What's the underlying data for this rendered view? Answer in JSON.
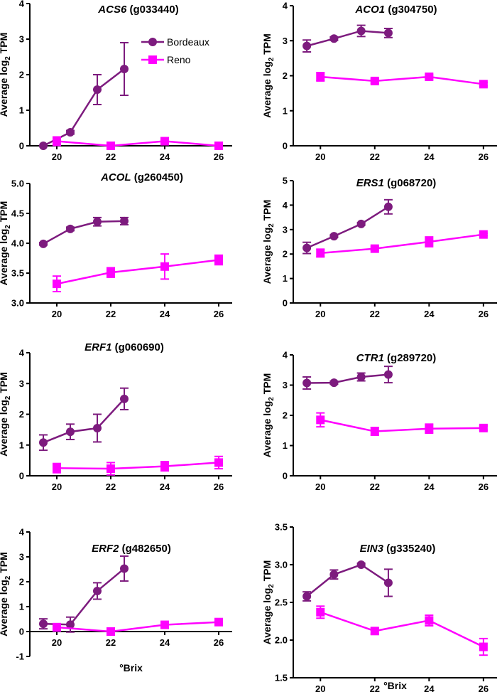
{
  "colors": {
    "bordeaux": "#7d1b7e",
    "reno": "#ff00ff",
    "axis": "#000000"
  },
  "legend": {
    "placement": "top-right of first panel",
    "entries": [
      "Bordeaux",
      "Reno"
    ]
  },
  "chart_data": [
    {
      "type": "line",
      "gene": "ACS6",
      "gene_id": "(g033440)",
      "xlabel": "",
      "ylabel": "Average log2 TPM",
      "xlim": [
        19,
        26.5
      ],
      "ylim": [
        0,
        4
      ],
      "xticks": [
        "20",
        "22",
        "24",
        "26"
      ],
      "yticks": [
        "0",
        "1",
        "2",
        "3",
        "4"
      ],
      "series": [
        {
          "name": "Bordeaux",
          "marker": "circle",
          "x": [
            19.5,
            20.5,
            21.5,
            22.5
          ],
          "y": [
            0.0,
            0.38,
            1.58,
            2.16
          ],
          "err": [
            0.0,
            0.05,
            0.42,
            0.74
          ]
        },
        {
          "name": "Reno",
          "marker": "square",
          "x": [
            20,
            22,
            24,
            26
          ],
          "y": [
            0.13,
            0.0,
            0.13,
            0.0
          ],
          "err": [
            0.12,
            0.05,
            0.1,
            0.05
          ]
        }
      ]
    },
    {
      "type": "line",
      "gene": "ACO1",
      "gene_id": "(g304750)",
      "xlabel": "",
      "ylabel": "Average log2 TPM",
      "xlim": [
        19,
        26.5
      ],
      "ylim": [
        0,
        4
      ],
      "xticks": [
        "20",
        "22",
        "24",
        "26"
      ],
      "yticks": [
        "0",
        "1",
        "2",
        "3",
        "4"
      ],
      "series": [
        {
          "name": "Bordeaux",
          "marker": "circle",
          "x": [
            19.5,
            20.5,
            21.5,
            22.5
          ],
          "y": [
            2.85,
            3.06,
            3.28,
            3.22
          ],
          "err": [
            0.17,
            0.05,
            0.16,
            0.13
          ]
        },
        {
          "name": "Reno",
          "marker": "square",
          "x": [
            20,
            22,
            24,
            26
          ],
          "y": [
            1.97,
            1.85,
            1.97,
            1.76
          ],
          "err": [
            0.12,
            0.06,
            0.05,
            0.05
          ]
        }
      ]
    },
    {
      "type": "line",
      "gene": "ACOL",
      "gene_id": "(g260450)",
      "xlabel": "",
      "ylabel": "Average log2 TPM",
      "xlim": [
        19,
        26.5
      ],
      "ylim": [
        3.0,
        5.0
      ],
      "xticks": [
        "20",
        "22",
        "24",
        "26"
      ],
      "yticks": [
        "3.0",
        "3.5",
        "4.0",
        "4.5",
        "5.0"
      ],
      "series": [
        {
          "name": "Bordeaux",
          "marker": "circle",
          "x": [
            19.5,
            20.5,
            21.5,
            22.5
          ],
          "y": [
            3.99,
            4.24,
            4.36,
            4.37
          ],
          "err": [
            0.02,
            0.03,
            0.07,
            0.06
          ]
        },
        {
          "name": "Reno",
          "marker": "square",
          "x": [
            20,
            22,
            24,
            26
          ],
          "y": [
            3.32,
            3.51,
            3.61,
            3.72
          ],
          "err": [
            0.13,
            0.08,
            0.21,
            0.08
          ]
        }
      ]
    },
    {
      "type": "line",
      "gene": "ERS1",
      "gene_id": "(g068720)",
      "xlabel": "",
      "ylabel": "Average log2 TPM",
      "xlim": [
        19,
        26.5
      ],
      "ylim": [
        0,
        5
      ],
      "xticks": [
        "20",
        "22",
        "24",
        "26"
      ],
      "yticks": [
        "0",
        "1",
        "2",
        "3",
        "4",
        "5"
      ],
      "series": [
        {
          "name": "Bordeaux",
          "marker": "circle",
          "x": [
            19.5,
            20.5,
            21.5,
            22.5
          ],
          "y": [
            2.25,
            2.73,
            3.23,
            3.93
          ],
          "err": [
            0.23,
            0.05,
            0.05,
            0.29
          ]
        },
        {
          "name": "Reno",
          "marker": "square",
          "x": [
            20,
            22,
            24,
            26
          ],
          "y": [
            2.04,
            2.22,
            2.5,
            2.8
          ],
          "err": [
            0.16,
            0.07,
            0.2,
            0.05
          ]
        }
      ]
    },
    {
      "type": "line",
      "gene": "ERF1",
      "gene_id": "(g060690)",
      "xlabel": "",
      "ylabel": "Average log2 TPM",
      "xlim": [
        19,
        26.5
      ],
      "ylim": [
        0,
        4
      ],
      "xticks": [
        "20",
        "22",
        "24",
        "26"
      ],
      "yticks": [
        "0",
        "1",
        "2",
        "3",
        "4"
      ],
      "series": [
        {
          "name": "Bordeaux",
          "marker": "circle",
          "x": [
            19.5,
            20.5,
            21.5,
            22.5
          ],
          "y": [
            1.08,
            1.43,
            1.55,
            2.5
          ],
          "err": [
            0.25,
            0.25,
            0.45,
            0.35
          ]
        },
        {
          "name": "Reno",
          "marker": "square",
          "x": [
            20,
            22,
            24,
            26
          ],
          "y": [
            0.25,
            0.23,
            0.31,
            0.43
          ],
          "err": [
            0.15,
            0.2,
            0.15,
            0.2
          ]
        }
      ]
    },
    {
      "type": "line",
      "gene": "CTR1",
      "gene_id": "(g289720)",
      "xlabel": "",
      "ylabel": "Average log2 TPM",
      "xlim": [
        19,
        26.5
      ],
      "ylim": [
        0,
        4
      ],
      "xticks": [
        "20",
        "22",
        "24",
        "26"
      ],
      "yticks": [
        "0",
        "1",
        "2",
        "3",
        "4"
      ],
      "series": [
        {
          "name": "Bordeaux",
          "marker": "circle",
          "x": [
            19.5,
            20.5,
            21.5,
            22.5
          ],
          "y": [
            3.07,
            3.08,
            3.27,
            3.35
          ],
          "err": [
            0.2,
            0.05,
            0.13,
            0.27
          ]
        },
        {
          "name": "Reno",
          "marker": "square",
          "x": [
            20,
            22,
            24,
            26
          ],
          "y": [
            1.85,
            1.47,
            1.56,
            1.58
          ],
          "err": [
            0.23,
            0.13,
            0.15,
            0.07
          ]
        }
      ]
    },
    {
      "type": "line",
      "gene": "ERF2",
      "gene_id": "(g482650)",
      "xlabel": "°Brix",
      "ylabel": "Average log2 TPM",
      "xlim": [
        19,
        26.5
      ],
      "ylim": [
        -1,
        4
      ],
      "xticks": [
        "20",
        "22",
        "24",
        "26"
      ],
      "yticks": [
        "-1",
        "0",
        "1",
        "2",
        "3",
        "4"
      ],
      "series": [
        {
          "name": "Bordeaux",
          "marker": "circle",
          "x": [
            19.5,
            20.5,
            21.5,
            22.5
          ],
          "y": [
            0.31,
            0.28,
            1.63,
            2.53
          ],
          "err": [
            0.2,
            0.3,
            0.33,
            0.5
          ]
        },
        {
          "name": "Reno",
          "marker": "square",
          "x": [
            20,
            22,
            24,
            26
          ],
          "y": [
            0.17,
            0.0,
            0.27,
            0.38
          ],
          "err": [
            0.15,
            0.05,
            0.08,
            0.05
          ]
        }
      ]
    },
    {
      "type": "line",
      "gene": "EIN3",
      "gene_id": "(g335240)",
      "xlabel": "°Brix",
      "ylabel": "Average log2 TPM",
      "xlim": [
        19,
        26.5
      ],
      "ylim": [
        1.5,
        3.5
      ],
      "xticks": [
        "20",
        "22",
        "24",
        "26"
      ],
      "yticks": [
        "1.5",
        "2.0",
        "2.5",
        "3.0",
        "3.5"
      ],
      "series": [
        {
          "name": "Bordeaux",
          "marker": "circle",
          "x": [
            19.5,
            20.5,
            21.5,
            22.5
          ],
          "y": [
            2.58,
            2.87,
            3.0,
            2.76
          ],
          "err": [
            0.06,
            0.06,
            0.02,
            0.18
          ]
        },
        {
          "name": "Reno",
          "marker": "square",
          "x": [
            20,
            22,
            24,
            26
          ],
          "y": [
            2.37,
            2.12,
            2.26,
            1.91
          ],
          "err": [
            0.08,
            0.04,
            0.07,
            0.11
          ]
        }
      ]
    }
  ]
}
